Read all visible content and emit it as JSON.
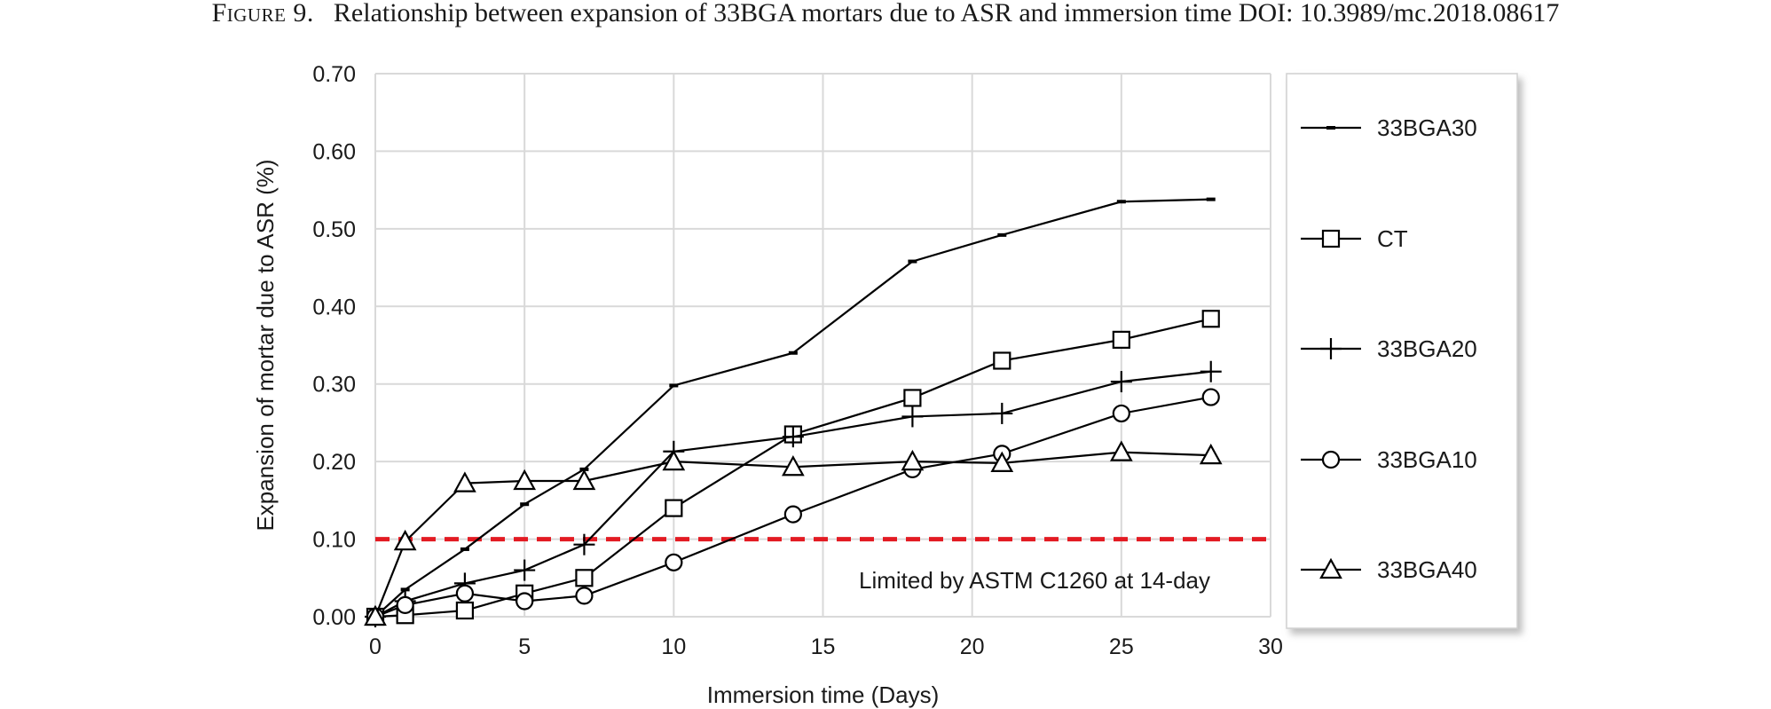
{
  "caption": {
    "label": "Figure 9.",
    "text": "Relationship between expansion of 33BGA mortars due to ASR and immersion time DOI: 10.3989/mc.2018.08617"
  },
  "chart_data": {
    "type": "line",
    "xlabel": "Immersion time (Days)",
    "ylabel": "Expansion of mortar due to ASR (%)",
    "xlim": [
      0,
      30
    ],
    "ylim": [
      0,
      0.7
    ],
    "xticks": [
      0,
      5,
      10,
      15,
      20,
      25,
      30
    ],
    "xtick_labels": [
      "0",
      "5",
      "10",
      "15",
      "20",
      "25",
      "30"
    ],
    "yticks": [
      0,
      0.1,
      0.2,
      0.3,
      0.4,
      0.5,
      0.6,
      0.7
    ],
    "ytick_labels": [
      "0.00",
      "0.10",
      "0.20",
      "0.30",
      "0.40",
      "0.50",
      "0.60",
      "0.70"
    ],
    "grid": true,
    "legend_position": "right",
    "series": [
      {
        "name": "33BGA30",
        "marker": "dash",
        "x": [
          0,
          1,
          3,
          5,
          7,
          10,
          14,
          18,
          21,
          25,
          28
        ],
        "y": [
          0,
          0.035,
          0.087,
          0.145,
          0.19,
          0.298,
          0.34,
          0.458,
          0.492,
          0.535,
          0.538
        ]
      },
      {
        "name": "CT",
        "marker": "square",
        "x": [
          0,
          1,
          3,
          5,
          7,
          10,
          14,
          18,
          21,
          25,
          28
        ],
        "y": [
          0,
          0.002,
          0.008,
          0.03,
          0.05,
          0.14,
          0.235,
          0.282,
          0.33,
          0.357,
          0.384
        ]
      },
      {
        "name": "33BGA20",
        "marker": "plus",
        "x": [
          0,
          1,
          3,
          5,
          7,
          10,
          14,
          18,
          21,
          25,
          28
        ],
        "y": [
          0,
          0.02,
          0.043,
          0.06,
          0.093,
          0.213,
          0.232,
          0.258,
          0.262,
          0.303,
          0.316
        ]
      },
      {
        "name": "33BGA10",
        "marker": "circle",
        "x": [
          0,
          1,
          3,
          5,
          7,
          10,
          14,
          18,
          21,
          25,
          28
        ],
        "y": [
          0,
          0.015,
          0.03,
          0.02,
          0.027,
          0.07,
          0.132,
          0.19,
          0.21,
          0.262,
          0.283
        ]
      },
      {
        "name": "33BGA40",
        "marker": "triangle",
        "x": [
          0,
          1,
          3,
          5,
          7,
          10,
          14,
          18,
          21,
          25,
          28
        ],
        "y": [
          0,
          0.097,
          0.172,
          0.175,
          0.175,
          0.2,
          0.193,
          0.2,
          0.198,
          0.212,
          0.208
        ]
      }
    ],
    "reference_line": {
      "y": 0.1,
      "color": "#e31b23",
      "style": "dashed"
    },
    "annotation": "Limited by ASTM C1260 at 14-day",
    "legend_order": [
      "33BGA30",
      "CT",
      "33BGA20",
      "33BGA10",
      "33BGA40"
    ]
  }
}
